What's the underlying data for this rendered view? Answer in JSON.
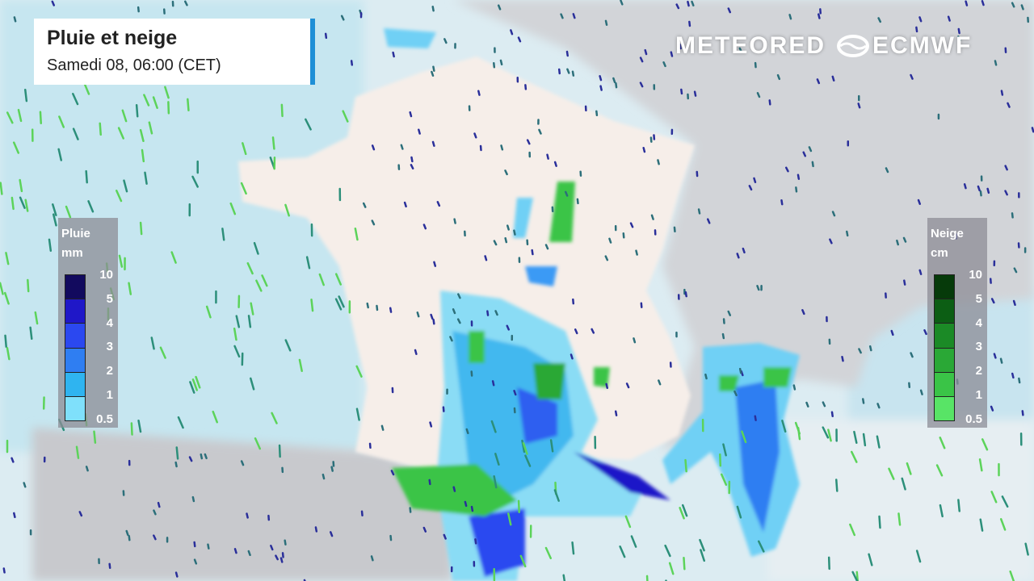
{
  "header": {
    "title": "Pluie et neige",
    "subtitle": "Samedi 08, 06:00 (CET)"
  },
  "logos": {
    "meteored": "METEORED",
    "ecmwf": "ECMWF"
  },
  "legend_rain": {
    "title": "Pluie",
    "unit": "mm",
    "ticks": [
      "10",
      "5",
      "4",
      "3",
      "2",
      "1",
      "0.5"
    ],
    "colors": [
      "#120a5e",
      "#1f17c8",
      "#2b48f0",
      "#2f7ef2",
      "#2fb4f0",
      "#7fe0fb"
    ]
  },
  "legend_snow": {
    "title": "Neige",
    "unit": "cm",
    "ticks": [
      "10",
      "5",
      "4",
      "3",
      "2",
      "1",
      "0.5"
    ],
    "colors": [
      "#063a0a",
      "#0c5e14",
      "#1b8a26",
      "#2aa836",
      "#3ac447",
      "#58e466"
    ]
  }
}
